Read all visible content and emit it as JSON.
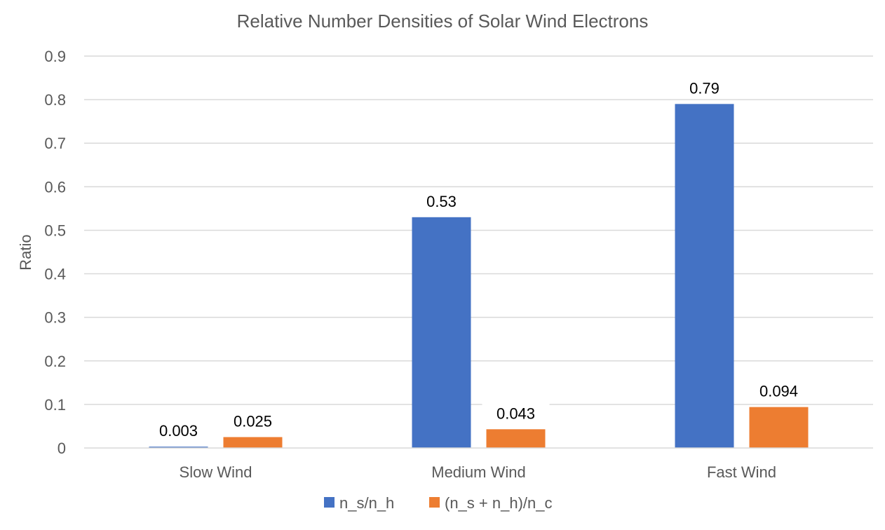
{
  "chart_data": {
    "type": "bar",
    "title": "Relative Number Densities of Solar Wind Electrons",
    "xlabel": "",
    "ylabel": "Ratio",
    "categories": [
      "Slow Wind",
      "Medium Wind",
      "Fast Wind"
    ],
    "series": [
      {
        "name": "n_s/n_h",
        "color": "#4472C4",
        "values": [
          0.003,
          0.53,
          0.79
        ],
        "labels": [
          "0.003",
          "0.53",
          "0.79"
        ]
      },
      {
        "name": "(n_s + n_h)/n_c",
        "color": "#ED7D31",
        "values": [
          0.025,
          0.043,
          0.094
        ],
        "labels": [
          "0.025",
          "0.043",
          "0.094"
        ]
      }
    ],
    "ylim": [
      0,
      0.9
    ],
    "yticks": [
      0,
      0.1,
      0.2,
      0.3,
      0.4,
      0.5,
      0.6,
      0.7,
      0.8,
      0.9
    ],
    "ytick_labels": [
      "0",
      "0.1",
      "0.2",
      "0.3",
      "0.4",
      "0.5",
      "0.6",
      "0.7",
      "0.8",
      "0.9"
    ],
    "grid": true,
    "legend_position": "bottom-center"
  }
}
